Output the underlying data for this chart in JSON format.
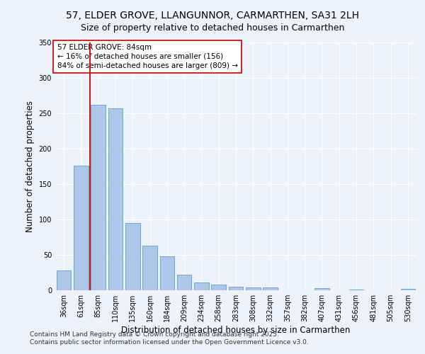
{
  "title_line1": "57, ELDER GROVE, LLANGUNNOR, CARMARTHEN, SA31 2LH",
  "title_line2": "Size of property relative to detached houses in Carmarthen",
  "xlabel": "Distribution of detached houses by size in Carmarthen",
  "ylabel": "Number of detached properties",
  "bar_color": "#aec6e8",
  "bar_edge_color": "#5a9fd4",
  "vline_color": "#cc0000",
  "vline_x_index": 1.5,
  "annotation_text": "57 ELDER GROVE: 84sqm\n← 16% of detached houses are smaller (156)\n84% of semi-detached houses are larger (809) →",
  "annotation_box_color": "#ffffff",
  "annotation_box_edge": "#cc0000",
  "categories": [
    "36sqm",
    "61sqm",
    "85sqm",
    "110sqm",
    "135sqm",
    "160sqm",
    "184sqm",
    "209sqm",
    "234sqm",
    "258sqm",
    "283sqm",
    "308sqm",
    "332sqm",
    "357sqm",
    "382sqm",
    "407sqm",
    "431sqm",
    "456sqm",
    "481sqm",
    "505sqm",
    "530sqm"
  ],
  "values": [
    28,
    176,
    262,
    257,
    95,
    63,
    48,
    22,
    11,
    8,
    5,
    4,
    4,
    0,
    0,
    3,
    0,
    1,
    0,
    0,
    2
  ],
  "ylim": [
    0,
    350
  ],
  "yticks": [
    0,
    50,
    100,
    150,
    200,
    250,
    300,
    350
  ],
  "background_color": "#eef2fa",
  "grid_color": "#ffffff",
  "footer_line1": "Contains HM Land Registry data © Crown copyright and database right 2025.",
  "footer_line2": "Contains public sector information licensed under the Open Government Licence v3.0.",
  "title_fontsize": 10,
  "subtitle_fontsize": 9,
  "axis_label_fontsize": 8.5,
  "tick_fontsize": 7,
  "footer_fontsize": 6.5,
  "annot_fontsize": 7.5
}
